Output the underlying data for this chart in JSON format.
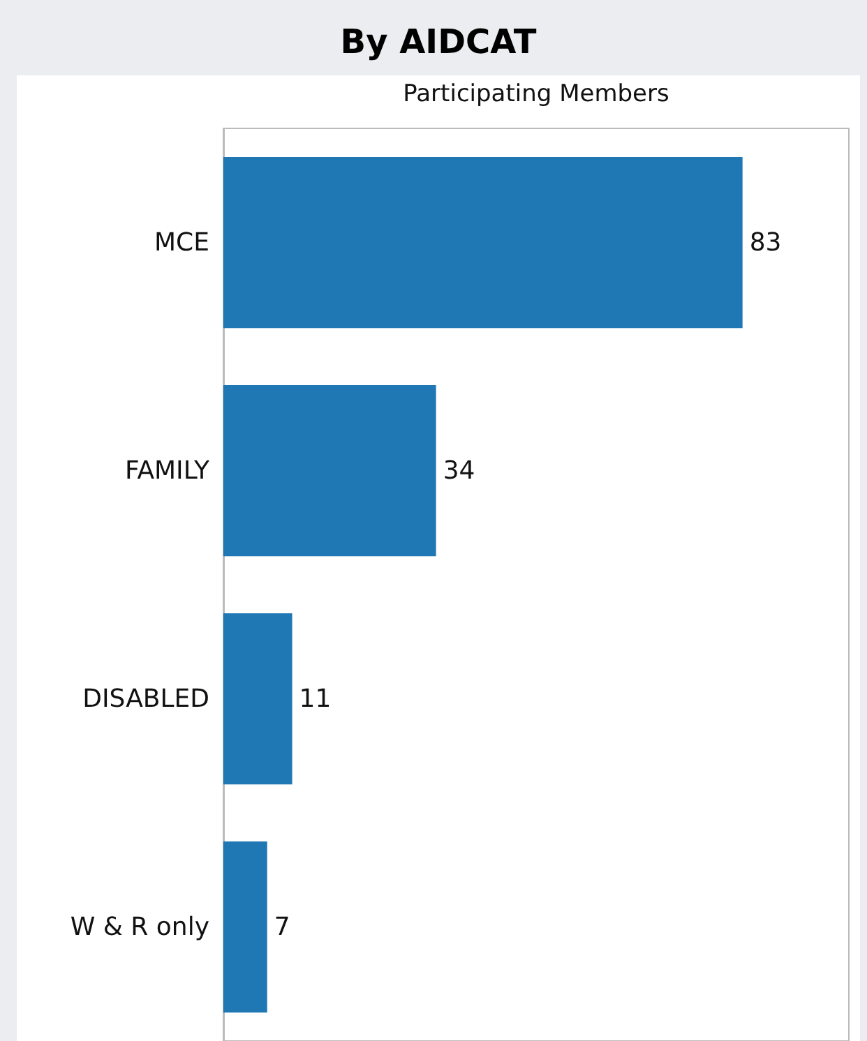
{
  "chart_data": {
    "type": "bar",
    "title": "By AIDCAT",
    "xlabel": "Participating Members",
    "orientation": "horizontal",
    "categories": [
      "MCE",
      "FAMILY",
      "DISABLED",
      "W & R only"
    ],
    "values": [
      83,
      34,
      11,
      7
    ],
    "color": "#1f77b4",
    "data_labels": true,
    "tick_labels": "y"
  }
}
